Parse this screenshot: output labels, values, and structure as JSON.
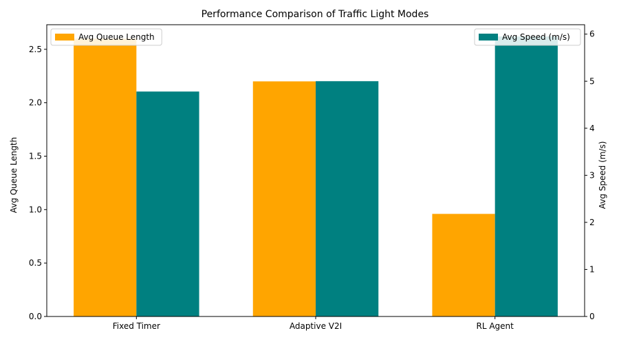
{
  "chart_data": {
    "type": "bar",
    "title": "Performance Comparison of Traffic Light Modes",
    "categories": [
      "Fixed Timer",
      "Adaptive V2I",
      "RL Agent"
    ],
    "series": [
      {
        "name": "Avg Queue Length",
        "axis": "left",
        "values": [
          2.6,
          2.2,
          0.96
        ],
        "color": "#FFA500"
      },
      {
        "name": "Avg Speed (m/s)",
        "axis": "right",
        "values": [
          4.78,
          5.0,
          5.95
        ],
        "color": "#008080"
      }
    ],
    "ylabel_left": "Avg Queue Length",
    "ylabel_right": "Avg Speed (m/s)",
    "ylim_left": [
      0,
      2.73
    ],
    "ylim_right": [
      0,
      6.2
    ],
    "yticks_left": [
      "0.0",
      "0.5",
      "1.0",
      "1.5",
      "2.0",
      "2.5"
    ],
    "yticks_right": [
      "0",
      "1",
      "2",
      "3",
      "4",
      "5",
      "6"
    ],
    "grid": false,
    "legend_left_placement": "top-left",
    "legend_right_placement": "top-right"
  }
}
